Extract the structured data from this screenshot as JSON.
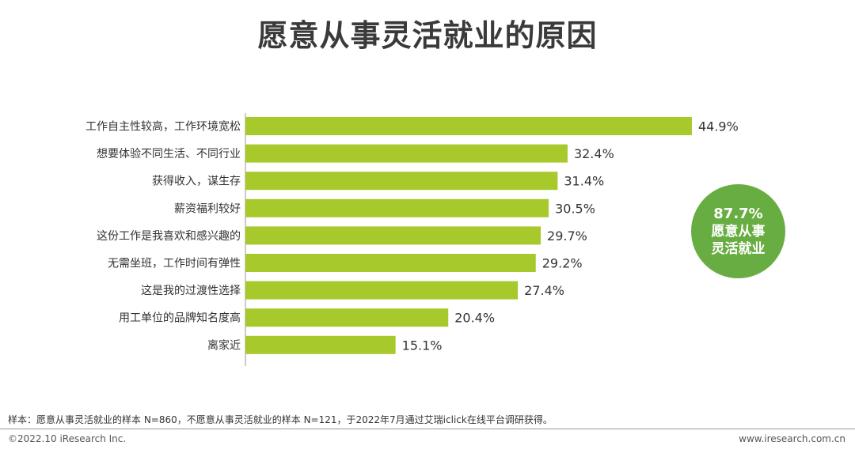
{
  "title": "愿意从事灵活就业的原因",
  "chart_data": {
    "type": "bar",
    "orientation": "horizontal",
    "categories": [
      "工作自主性较高，工作环境宽松",
      "想要体验不同生活、不同行业",
      "获得收入，谋生存",
      "薪资福利较好",
      "这份工作是我喜欢和感兴趣的",
      "无需坐班，工作时间有弹性",
      "这是我的过渡性选择",
      "用工单位的品牌知名度高",
      "离家近"
    ],
    "values": [
      44.9,
      32.4,
      31.4,
      30.5,
      29.7,
      29.2,
      27.4,
      20.4,
      15.1
    ],
    "value_labels": [
      "44.9%",
      "32.4%",
      "31.4%",
      "30.5%",
      "29.7%",
      "29.2%",
      "27.4%",
      "20.4%",
      "15.1%"
    ],
    "unit": "%",
    "bar_color": "#a8c92c",
    "xlim": [
      0,
      50
    ],
    "grid": false,
    "legend": "none"
  },
  "badge": {
    "percent": "87.7%",
    "line1": "愿意从事",
    "line2": "灵活就业",
    "color": "#68ad42"
  },
  "footer": {
    "note": "样本：愿意从事灵活就业的样本 N=860，不愿意从事灵活就业的样本 N=121，于2022年7月通过艾瑞iclick在线平台调研获得。",
    "copyright": "©2022.10 iResearch Inc.",
    "website": "www.iresearch.com.cn"
  }
}
